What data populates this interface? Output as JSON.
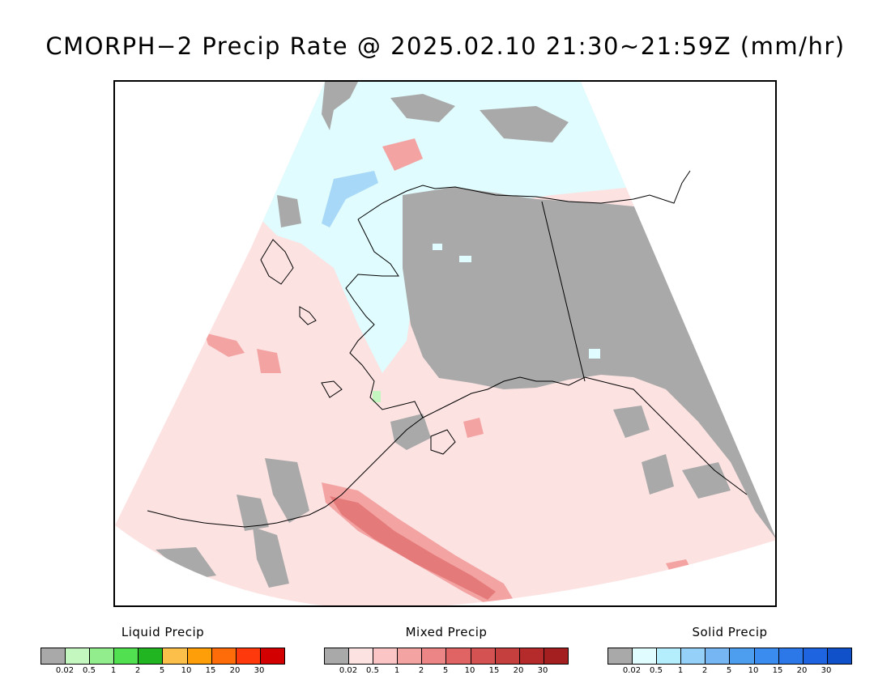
{
  "title": "CMORPH−2 Precip Rate @ 2025.02.10 21:30~21:59Z (mm/hr)",
  "map": {
    "region": "Alaska",
    "colors": {
      "background_mixed": "#fde2e2",
      "snow_light": "#e0fcfe",
      "no_data_gray": "#a9a9a9",
      "mixed_moderate": "#f4a3a3",
      "mixed_heavy": "#e57a7a",
      "snow_moderate": "#a8d8f7",
      "liquid_light": "#c4f7c0",
      "coastline": "#000000"
    }
  },
  "legends": [
    {
      "title": "Liquid Precip",
      "colors": [
        "#a9a9a9",
        "#c4f7c0",
        "#92ee8c",
        "#50e050",
        "#22b522",
        "#fcc04a",
        "#fe9f09",
        "#fe6c09",
        "#fe3a0d",
        "#d20000"
      ],
      "ticks": [
        "0.02",
        "0.5",
        "1",
        "2",
        "5",
        "10",
        "15",
        "20",
        "30"
      ]
    },
    {
      "title": "Mixed Precip",
      "colors": [
        "#a9a9a9",
        "#fde2e2",
        "#fcc5c5",
        "#f4a3a3",
        "#ec8686",
        "#e06464",
        "#d45252",
        "#c53f3f",
        "#b52b2b",
        "#a41f1f"
      ],
      "ticks": [
        "0.02",
        "0.5",
        "1",
        "2",
        "5",
        "10",
        "15",
        "20",
        "30"
      ]
    },
    {
      "title": "Solid Precip",
      "colors": [
        "#a9a9a9",
        "#e0fcfe",
        "#b4eefc",
        "#94d0f8",
        "#76b6f2",
        "#4e9ef0",
        "#3a8cee",
        "#2c78e8",
        "#1e64e0",
        "#1050c8"
      ],
      "ticks": [
        "0.02",
        "0.5",
        "1",
        "2",
        "5",
        "10",
        "15",
        "20",
        "30"
      ]
    }
  ]
}
